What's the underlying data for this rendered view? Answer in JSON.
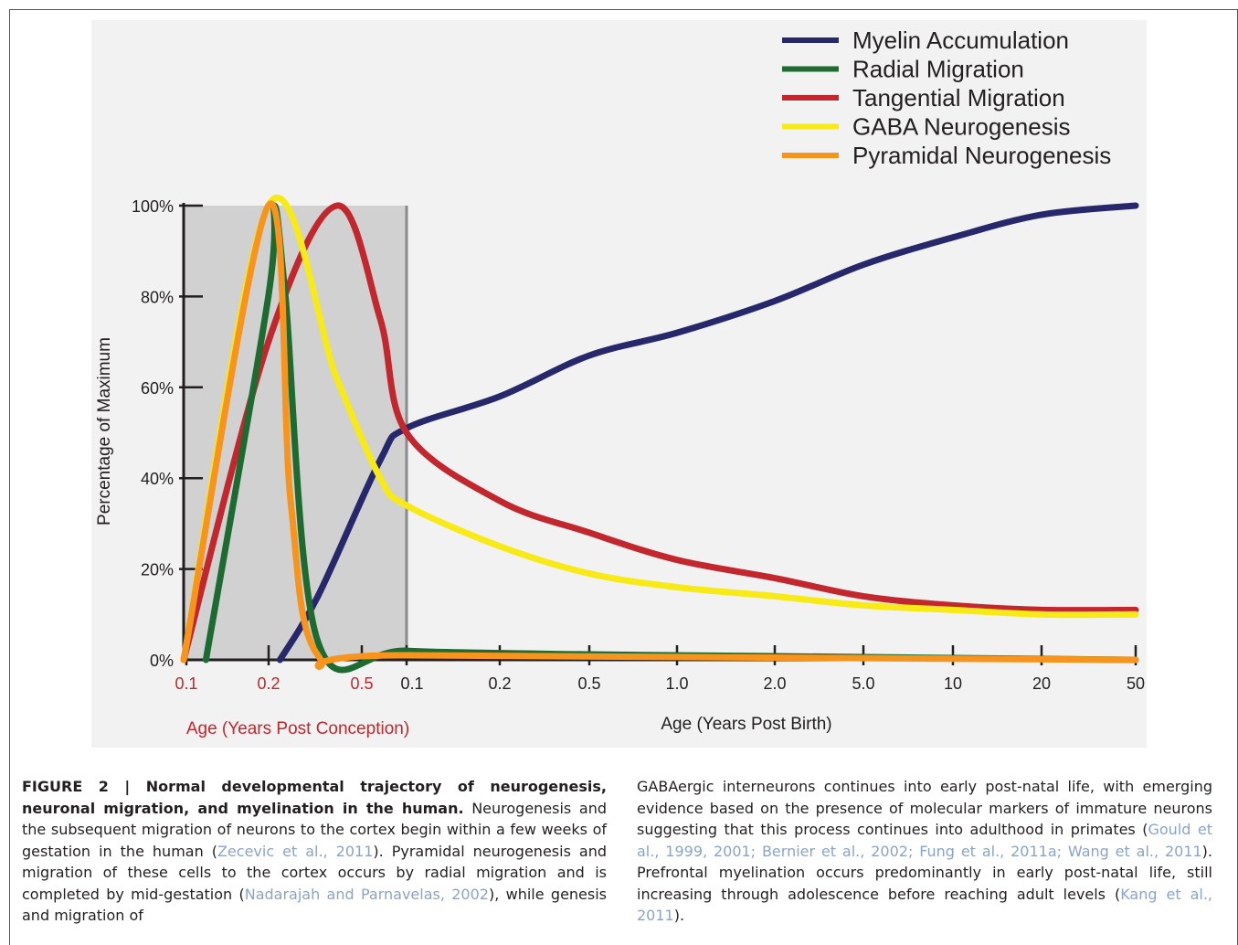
{
  "chart_data": {
    "type": "line",
    "ylabel": "Percentage of Maximum",
    "y_ticks": [
      "0%",
      "20%",
      "40%",
      "60%",
      "80%",
      "100%"
    ],
    "ylim": [
      0,
      100
    ],
    "x_axis_prenatal": {
      "label": "Age (Years Post Conception)",
      "ticks": [
        "0.1",
        "0.2",
        "0.5"
      ],
      "color": "#c1272d",
      "shaded": true
    },
    "x_axis_postnatal": {
      "label": "Age (Years Post Birth)",
      "ticks": [
        "0.1",
        "0.2",
        "0.5",
        "1.0",
        "2.0",
        "5.0",
        "10",
        "20",
        "50"
      ]
    },
    "x_scale": "log",
    "legend_position": "top-right",
    "series": [
      {
        "name": "Myelin Accumulation",
        "color": "#27276b",
        "x": [
          "0.22 pc",
          "0.3 pc",
          "0.5 pc",
          "0.1",
          "0.2",
          "0.5",
          "1.0",
          "2.0",
          "5.0",
          "10",
          "20",
          "50"
        ],
        "values": [
          0,
          14,
          44,
          51,
          58,
          67,
          72,
          79,
          87,
          93,
          98,
          100
        ]
      },
      {
        "name": "Radial Migration",
        "color": "#1e6b32",
        "x": [
          "0.12 pc",
          "0.2 pc",
          "0.21 pc",
          "0.23 pc",
          "0.3 pc",
          "0.1",
          "0.5",
          "2.0",
          "50"
        ],
        "values": [
          0,
          80,
          100,
          80,
          4,
          2,
          1.2,
          0.8,
          0
        ]
      },
      {
        "name": "Tangential Migration",
        "color": "#c1272d",
        "x": [
          "0.1 pc",
          "0.2 pc",
          "0.35 pc",
          "0.5 pc",
          "0.1",
          "0.2",
          "0.5",
          "1.0",
          "2.0",
          "5.0",
          "10",
          "20",
          "50"
        ],
        "values": [
          0,
          70,
          100,
          75,
          50,
          35,
          28,
          22,
          18,
          14,
          12,
          11,
          11
        ]
      },
      {
        "name": "GABA Neurogenesis",
        "color": "#f7ea16",
        "x": [
          "0.1 pc",
          "0.2 pc",
          "0.35 pc",
          "0.5 pc",
          "0.1",
          "0.2",
          "0.5",
          "1.0",
          "2.0",
          "5.0",
          "10",
          "20",
          "50"
        ],
        "values": [
          0,
          100,
          62,
          40,
          34,
          25,
          19,
          16,
          14,
          12,
          11,
          10,
          10
        ]
      },
      {
        "name": "Pyramidal Neurogenesis",
        "color": "#f7941d",
        "x": [
          "0.1 pc",
          "0.2 pc",
          "0.24 pc",
          "0.3 pc",
          "0.1",
          "50"
        ],
        "values": [
          0,
          100,
          35,
          1,
          1,
          0
        ]
      }
    ]
  },
  "caption": {
    "left_title": "FIGURE 2 | Normal developmental trajectory of neurogenesis, neuronal migration, and myelination in the human.",
    "left_body_1": " Neurogenesis and the subsequent migration of neurons to the cortex begin within a few weeks of gestation in the human (",
    "ref1": "Zecevic et al., 2011",
    "left_body_2": "). Pyramidal neurogenesis and migration of these cells to the cortex occurs by radial migration and is completed by mid-gestation (",
    "ref2": "Nadarajah and Parnavelas, 2002",
    "left_body_3": "), while genesis and migration of",
    "right_body_1": "GABAergic interneurons continues into early post-natal life, with emerging evidence based on the presence of molecular markers of immature neurons suggesting that this process continues into adulthood in primates (",
    "ref3": "Gould et al., 1999, 2001; Bernier et al., 2002; Fung et al., 2011a; Wang et al., 2011",
    "right_body_2": "). Prefrontal myelination occurs predominantly in early post-natal life, still increasing through adolescence before reaching adult levels (",
    "ref4": "Kang et al., 2011",
    "right_body_3": ")."
  }
}
